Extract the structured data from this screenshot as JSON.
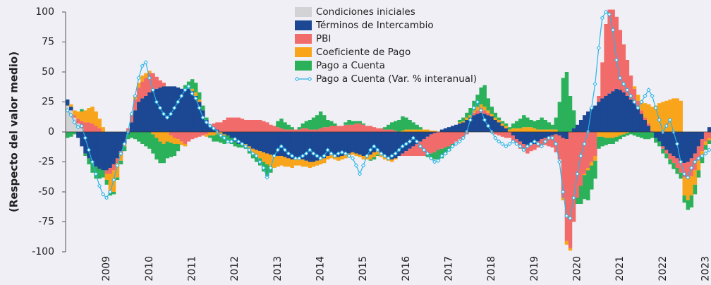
{
  "chart_data": {
    "type": "bar",
    "stacked": true,
    "y_label": "(Respecto del valor medio)",
    "ylim": [
      -100,
      100
    ],
    "yticks": [
      -100,
      -75,
      -50,
      -25,
      0,
      25,
      50,
      75,
      100
    ],
    "grid": false,
    "legend": "top",
    "categories": [
      null,
      null,
      null,
      null,
      null,
      null,
      null,
      null,
      null,
      null,
      null,
      "2009",
      null,
      null,
      null,
      null,
      null,
      null,
      null,
      null,
      null,
      null,
      null,
      "2010",
      null,
      null,
      null,
      null,
      null,
      null,
      null,
      null,
      null,
      null,
      null,
      "2011",
      null,
      null,
      null,
      null,
      null,
      null,
      null,
      null,
      null,
      null,
      null,
      "2012",
      null,
      null,
      null,
      null,
      null,
      null,
      null,
      null,
      null,
      null,
      null,
      "2013",
      null,
      null,
      null,
      null,
      null,
      null,
      null,
      null,
      null,
      null,
      null,
      "2014",
      null,
      null,
      null,
      null,
      null,
      null,
      null,
      null,
      null,
      null,
      null,
      "2015",
      null,
      null,
      null,
      null,
      null,
      null,
      null,
      null,
      null,
      null,
      null,
      "2016",
      null,
      null,
      null,
      null,
      null,
      null,
      null,
      null,
      null,
      null,
      null,
      "2017",
      null,
      null,
      null,
      null,
      null,
      null,
      null,
      null,
      null,
      null,
      null,
      "2018",
      null,
      null,
      null,
      null,
      null,
      null,
      null,
      null,
      null,
      null,
      null,
      "2019",
      null,
      null,
      null,
      null,
      null,
      null,
      null,
      null,
      null,
      null,
      null,
      "2020",
      null,
      null,
      null,
      null,
      null,
      null,
      null,
      null,
      null,
      null,
      null,
      "2021",
      null,
      null,
      null,
      null,
      null,
      null,
      null,
      null,
      null,
      null,
      null,
      "2022",
      null,
      null,
      null,
      null,
      null,
      null,
      null,
      null,
      null,
      null,
      null,
      "2023",
      null
    ],
    "series": [
      {
        "name": "Condiciones iniciales",
        "color": "#d3d3d6",
        "type": "bar",
        "values": [
          22,
          18,
          12,
          7,
          3,
          0,
          0,
          0,
          0,
          0,
          0,
          0,
          0,
          0,
          0,
          0,
          0,
          0,
          0,
          0,
          0,
          0,
          0,
          0,
          0,
          0,
          0,
          0,
          0,
          0,
          0,
          0,
          0,
          0,
          0,
          0,
          0,
          0,
          0,
          0,
          0,
          0,
          0,
          0,
          0,
          0,
          0,
          0,
          0,
          0,
          0,
          0,
          0,
          0,
          0,
          0,
          0,
          0,
          0,
          0,
          0,
          0,
          0,
          0,
          0,
          0,
          0,
          0,
          0,
          0,
          0,
          0,
          0,
          0,
          0,
          0,
          0,
          0,
          0,
          0,
          0,
          0,
          0,
          0,
          0,
          0,
          0,
          0,
          0,
          0,
          0,
          0,
          0,
          0,
          0,
          0,
          0,
          0,
          0,
          0,
          0,
          0,
          0,
          0,
          0,
          0,
          0,
          0,
          0,
          0,
          0,
          0,
          0,
          0,
          0,
          0,
          0,
          0,
          0,
          0,
          0,
          0,
          0,
          0,
          0,
          0,
          0,
          0,
          0,
          0,
          0,
          0,
          0,
          0,
          0,
          0,
          0,
          0,
          0,
          0,
          0,
          0,
          0,
          0,
          0,
          0,
          0,
          0,
          0,
          0,
          0,
          0,
          0,
          0,
          0,
          0,
          0,
          0,
          0,
          0,
          0,
          0,
          0,
          0,
          0,
          0,
          0,
          0,
          0,
          0,
          0,
          0,
          0,
          0,
          0,
          0,
          0,
          0,
          0,
          0,
          0
        ]
      },
      {
        "name": "Términos de Intercambio",
        "color": "#1b4793",
        "type": "bar",
        "values": [
          5,
          3,
          0,
          -5,
          -12,
          -18,
          -22,
          -26,
          -29,
          -31,
          -32,
          -32,
          -30,
          -27,
          -22,
          -16,
          -10,
          -2,
          8,
          18,
          25,
          28,
          30,
          33,
          35,
          36,
          37,
          38,
          38,
          38,
          38,
          37,
          36,
          35,
          36,
          34,
          30,
          25,
          18,
          10,
          6,
          3,
          2,
          0,
          -2,
          -3,
          -5,
          -8,
          -10,
          -10,
          -10,
          -12,
          -14,
          -15,
          -16,
          -17,
          -18,
          -19,
          -20,
          -20,
          -20,
          -21,
          -22,
          -23,
          -22,
          -22,
          -23,
          -24,
          -25,
          -25,
          -24,
          -23,
          -22,
          -20,
          -19,
          -20,
          -21,
          -20,
          -19,
          -18,
          -17,
          -18,
          -19,
          -20,
          -20,
          -19,
          -17,
          -16,
          -18,
          -20,
          -22,
          -23,
          -22,
          -20,
          -18,
          -16,
          -14,
          -12,
          -10,
          -8,
          -6,
          -4,
          -2,
          -1,
          0,
          2,
          3,
          4,
          5,
          6,
          7,
          8,
          10,
          12,
          14,
          15,
          16,
          15,
          14,
          13,
          10,
          8,
          5,
          3,
          0,
          -3,
          -6,
          -8,
          -10,
          -12,
          -11,
          -10,
          -8,
          -6,
          -5,
          -4,
          -3,
          -2,
          -3,
          -5,
          -6,
          0,
          3,
          6,
          10,
          14,
          17,
          20,
          22,
          25,
          28,
          30,
          32,
          34,
          36,
          35,
          33,
          30,
          27,
          24,
          20,
          15,
          10,
          5,
          0,
          -5,
          -8,
          -12,
          -15,
          -18,
          -20,
          -22,
          -24,
          -26,
          -25,
          -22,
          -18,
          -12,
          -6,
          0,
          4
        ]
      },
      {
        "name": "PBI",
        "color": "#f26b6b",
        "type": "bar",
        "values": [
          0,
          0,
          2,
          4,
          6,
          8,
          8,
          7,
          5,
          3,
          0,
          -3,
          -5,
          -5,
          -4,
          -2,
          0,
          3,
          6,
          9,
          12,
          14,
          15,
          16,
          14,
          10,
          6,
          3,
          0,
          -3,
          -5,
          -6,
          -8,
          -10,
          -8,
          -6,
          -5,
          -4,
          -3,
          -2,
          0,
          4,
          6,
          8,
          10,
          12,
          12,
          12,
          12,
          11,
          10,
          10,
          10,
          10,
          10,
          9,
          8,
          6,
          5,
          4,
          3,
          2,
          2,
          2,
          2,
          2,
          3,
          3,
          2,
          2,
          2,
          3,
          4,
          4,
          5,
          5,
          5,
          5,
          6,
          6,
          6,
          7,
          7,
          6,
          5,
          5,
          4,
          3,
          3,
          2,
          2,
          2,
          1,
          0,
          -2,
          -4,
          -6,
          -8,
          -10,
          -12,
          -14,
          -15,
          -16,
          -16,
          -15,
          -14,
          -13,
          -12,
          -10,
          -8,
          -6,
          -4,
          -2,
          0,
          2,
          3,
          4,
          3,
          2,
          0,
          -2,
          -3,
          -4,
          -5,
          -5,
          -5,
          -5,
          -6,
          -6,
          -6,
          -5,
          -5,
          -5,
          -5,
          -6,
          -8,
          -10,
          -15,
          -20,
          -50,
          -85,
          -97,
          -75,
          -55,
          -45,
          -35,
          -30,
          -25,
          -20,
          5,
          30,
          60,
          70,
          68,
          60,
          50,
          40,
          30,
          20,
          12,
          6,
          3,
          2,
          2,
          1,
          0,
          0,
          -2,
          -3,
          -5,
          -6,
          -8,
          -10,
          -12,
          -14,
          -15,
          -14,
          -12,
          -10,
          -8,
          -5
        ]
      },
      {
        "name": "Coeficiente de Pago",
        "color": "#f9a51c",
        "type": "bar",
        "values": [
          0,
          2,
          4,
          6,
          8,
          10,
          12,
          14,
          12,
          8,
          4,
          -5,
          -15,
          -18,
          -12,
          -6,
          -2,
          0,
          2,
          3,
          4,
          5,
          4,
          2,
          -2,
          -5,
          -8,
          -10,
          -8,
          -6,
          -5,
          -4,
          -3,
          -2,
          0,
          2,
          3,
          2,
          0,
          -2,
          -3,
          -3,
          -2,
          -2,
          -1,
          0,
          0,
          0,
          0,
          -1,
          -2,
          -3,
          -4,
          -5,
          -6,
          -8,
          -9,
          -10,
          -10,
          -9,
          -8,
          -8,
          -7,
          -7,
          -6,
          -6,
          -6,
          -5,
          -5,
          -4,
          -4,
          -4,
          -4,
          -3,
          -3,
          -3,
          -3,
          -3,
          -3,
          -2,
          -2,
          -2,
          -2,
          -3,
          -3,
          -4,
          -4,
          -3,
          -3,
          -3,
          -2,
          -2,
          -1,
          0,
          1,
          2,
          2,
          2,
          2,
          2,
          2,
          2,
          1,
          1,
          0,
          0,
          0,
          0,
          0,
          0,
          1,
          1,
          2,
          2,
          2,
          3,
          3,
          3,
          2,
          2,
          2,
          2,
          2,
          2,
          2,
          3,
          3,
          3,
          4,
          4,
          4,
          3,
          2,
          2,
          2,
          2,
          2,
          2,
          0,
          -2,
          -3,
          -2,
          0,
          0,
          0,
          -1,
          -2,
          -3,
          -4,
          -4,
          -4,
          -5,
          -5,
          -5,
          -4,
          -3,
          -2,
          -1,
          0,
          2,
          5,
          8,
          12,
          16,
          20,
          22,
          24,
          25,
          26,
          27,
          28,
          28,
          26,
          -15,
          -18,
          -16,
          -12,
          -8,
          -5,
          -3,
          -2
        ]
      },
      {
        "name": "Pago a Cuenta",
        "color": "#2ab15a",
        "type": "bar",
        "values": [
          -5,
          -4,
          -2,
          0,
          2,
          -2,
          -5,
          -8,
          -10,
          -8,
          -6,
          -4,
          -3,
          -2,
          -2,
          -3,
          -4,
          -4,
          -5,
          -6,
          -8,
          -10,
          -12,
          -14,
          -16,
          -18,
          -18,
          -16,
          -14,
          -12,
          -10,
          -6,
          0,
          4,
          6,
          8,
          8,
          6,
          4,
          2,
          -2,
          -5,
          -6,
          -7,
          -7,
          -6,
          -5,
          -4,
          -3,
          -2,
          -2,
          -3,
          -4,
          -5,
          -6,
          -8,
          -10,
          -5,
          0,
          5,
          8,
          6,
          4,
          2,
          0,
          2,
          4,
          6,
          8,
          10,
          12,
          14,
          10,
          6,
          4,
          2,
          0,
          0,
          2,
          4,
          3,
          2,
          2,
          1,
          0,
          -1,
          -2,
          -1,
          0,
          2,
          4,
          6,
          8,
          10,
          12,
          10,
          8,
          6,
          4,
          2,
          0,
          -2,
          -4,
          -6,
          -8,
          -8,
          -6,
          -4,
          -2,
          0,
          2,
          3,
          4,
          6,
          8,
          10,
          14,
          18,
          10,
          6,
          4,
          2,
          2,
          2,
          2,
          4,
          6,
          8,
          10,
          8,
          6,
          6,
          8,
          10,
          8,
          6,
          4,
          10,
          25,
          45,
          50,
          30,
          15,
          -5,
          -15,
          -20,
          -25,
          -20,
          -15,
          -10,
          -8,
          -6,
          -5,
          -5,
          -4,
          -3,
          -2,
          -2,
          -2,
          -3,
          -4,
          -5,
          -6,
          -6,
          -5,
          -4,
          -4,
          -4,
          -4,
          -4,
          -5,
          -5,
          -5,
          -6,
          -8,
          -10,
          -8,
          -6,
          -5,
          -4,
          -3
        ]
      },
      {
        "name": "Pago a Cuenta (Var. % interanual)",
        "color": "#2cb3e6",
        "type": "line",
        "values": [
          18,
          14,
          8,
          4,
          5,
          -5,
          -15,
          -25,
          -35,
          -45,
          -52,
          -55,
          -50,
          -40,
          -28,
          -18,
          -10,
          0,
          15,
          30,
          45,
          55,
          58,
          45,
          35,
          25,
          20,
          15,
          12,
          15,
          20,
          25,
          30,
          35,
          38,
          32,
          28,
          20,
          12,
          8,
          5,
          3,
          0,
          -3,
          -5,
          -8,
          -8,
          -6,
          -8,
          -10,
          -12,
          -15,
          -18,
          -20,
          -25,
          -30,
          -38,
          -30,
          -20,
          -15,
          -12,
          -15,
          -18,
          -20,
          -22,
          -22,
          -20,
          -18,
          -15,
          -18,
          -20,
          -22,
          -20,
          -15,
          -18,
          -20,
          -18,
          -17,
          -18,
          -20,
          -22,
          -28,
          -35,
          -28,
          -20,
          -15,
          -12,
          -15,
          -18,
          -20,
          -22,
          -20,
          -18,
          -15,
          -12,
          -10,
          -8,
          -5,
          -8,
          -12,
          -15,
          -18,
          -22,
          -25,
          -24,
          -20,
          -18,
          -15,
          -12,
          -10,
          -8,
          -5,
          0,
          10,
          20,
          25,
          18,
          10,
          5,
          0,
          -5,
          -8,
          -10,
          -12,
          -10,
          -8,
          -10,
          -12,
          -15,
          -12,
          -10,
          -8,
          -10,
          -12,
          -8,
          -5,
          -5,
          -10,
          -25,
          -50,
          -70,
          -72,
          -55,
          -35,
          -20,
          -10,
          0,
          20,
          40,
          70,
          95,
          100,
          98,
          85,
          60,
          45,
          40,
          35,
          30,
          25,
          20,
          25,
          30,
          35,
          30,
          20,
          10,
          0,
          5,
          10,
          0,
          -10,
          -25,
          -35,
          -38,
          -30,
          -25,
          -22,
          -20,
          -18,
          -15
        ]
      }
    ]
  }
}
